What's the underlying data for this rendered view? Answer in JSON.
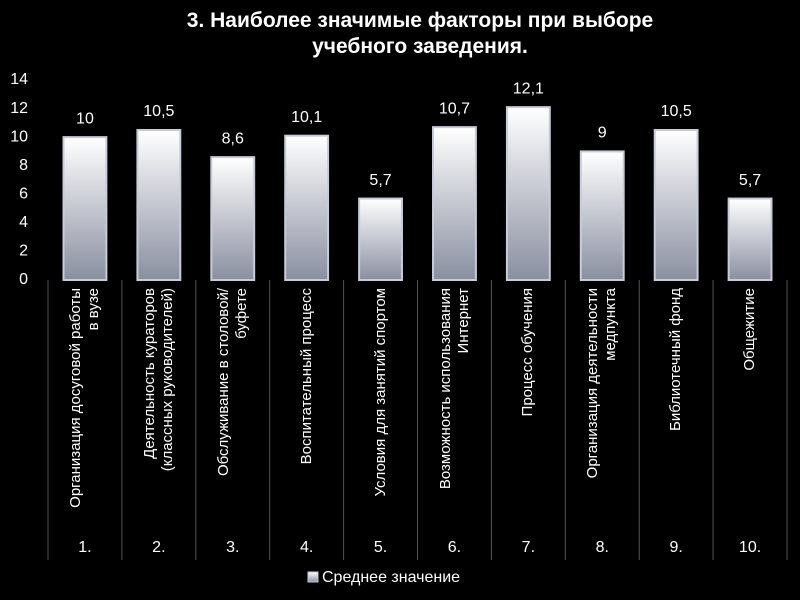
{
  "chart_data": {
    "type": "bar",
    "title": "3. Наиболее значимые факторы при выборе учебного заведения.",
    "categories": [
      "Организация досуговой работы в вузе",
      "Деятельность кураторов (классных руководителей)",
      "Обслуживание в столовой/буфете",
      "Воспитательный процесс",
      "Условия для занятий спортом",
      "Возможность использования Интернет",
      "Процесс обучения",
      "Организация деятельности медпункта",
      "Библиотечный фонд",
      "Общежитие"
    ],
    "category_numbers": [
      "1.",
      "2.",
      "3.",
      "4.",
      "5.",
      "6.",
      "7.",
      "8.",
      "9.",
      "10."
    ],
    "series": [
      {
        "name": "Среднее значение",
        "color": "#c8ccd8",
        "values": [
          10,
          10.5,
          8.6,
          10.1,
          5.7,
          10.7,
          12.1,
          9,
          10.5,
          5.7
        ],
        "value_labels": [
          "10",
          "10,5",
          "8,6",
          "10,1",
          "5,7",
          "10,7",
          "12,1",
          "9",
          "10,5",
          "5,7"
        ]
      }
    ],
    "ylim": [
      0,
      14
    ],
    "yticks": [
      0,
      2,
      4,
      6,
      8,
      10,
      12,
      14
    ],
    "grid": false
  }
}
